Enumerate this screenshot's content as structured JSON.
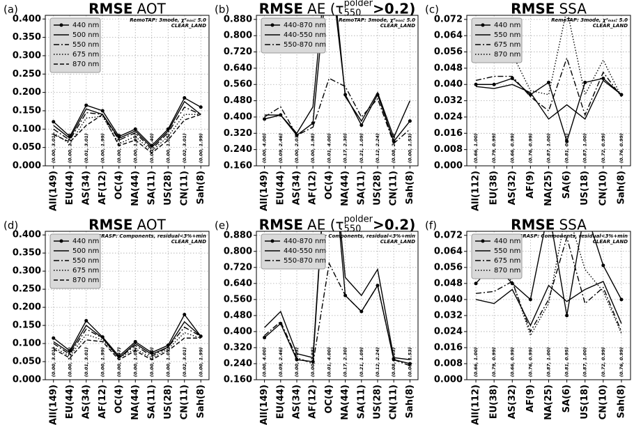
{
  "chart_data": [
    {
      "type": "line",
      "panel_label": "(a)",
      "title": "RMSE",
      "title_suffix": "AOT",
      "annotation": "RemoTAP: 3mode, χ²ₘₐₓ: 5.0",
      "annotation2": "CLEAR_LAND",
      "categories": [
        "All(149)",
        "EU(44)",
        "AS(34)",
        "AF(12)",
        "OC(4)",
        "NA(44)",
        "SA(11)",
        "US(28)",
        "CN(11)",
        "Sah(8)"
      ],
      "range_labels": [
        "(0.00, 3.01)",
        "(0.00, 1.72)",
        "(0.01, 3.01)",
        "(0.00, 1.99)",
        "(0.00, 0.47)",
        "(0.00, 1.09)",
        "(0.00, 1.40)",
        "(0.00, 1.05)",
        "(0.02, 3.01)",
        "(0.00, 1.99)"
      ],
      "series": [
        {
          "name": "440 nm",
          "color": "#000000",
          "dash": "solid",
          "marker": "o",
          "values": [
            0.12,
            0.08,
            0.165,
            0.15,
            0.08,
            0.1,
            0.055,
            0.1,
            0.185,
            0.16
          ]
        },
        {
          "name": "500 nm",
          "color": "#000000",
          "dash": "solid",
          "values": [
            0.11,
            0.075,
            0.155,
            0.14,
            0.075,
            0.095,
            0.05,
            0.095,
            0.175,
            0.14
          ]
        },
        {
          "name": "550 nm",
          "color": "#000000",
          "dash": "dashdot",
          "values": [
            0.1,
            0.07,
            0.145,
            0.14,
            0.07,
            0.09,
            0.045,
            0.09,
            0.16,
            0.14
          ]
        },
        {
          "name": "675 nm",
          "color": "#000000",
          "dash": "dotted",
          "values": [
            0.09,
            0.06,
            0.13,
            0.135,
            0.06,
            0.08,
            0.04,
            0.08,
            0.14,
            0.14
          ]
        },
        {
          "name": "870 nm",
          "color": "#000000",
          "dash": "dashed",
          "values": [
            0.085,
            0.065,
            0.11,
            0.14,
            0.055,
            0.07,
            0.035,
            0.07,
            0.125,
            0.14
          ]
        }
      ],
      "ylim": [
        0,
        0.41
      ],
      "yticks": [
        {
          "value": 0,
          "label": "0.000"
        },
        {
          "value": 0.05,
          "label": "0.050"
        },
        {
          "value": 0.1,
          "label": "0.100"
        },
        {
          "value": 0.15,
          "label": "0.150"
        },
        {
          "value": 0.2,
          "label": "0.200"
        },
        {
          "value": 0.25,
          "label": "0.250"
        },
        {
          "value": 0.3,
          "label": "0.300"
        },
        {
          "value": 0.35,
          "label": "0.350"
        },
        {
          "value": 0.4,
          "label": "0.400"
        }
      ],
      "grid": true,
      "legend": "upper left"
    },
    {
      "type": "line",
      "panel_label": "(b)",
      "title": "RMSE",
      "title_suffix": "AE (τ",
      "title_sup": "polder",
      "title_sub": "550",
      "title_end": ">0.2)",
      "annotation": "RemoTAP: 3mode, χ²ₘₐₓ: 5.0",
      "annotation2": "CLEAR_LAND",
      "categories": [
        "All(149)",
        "EU(44)",
        "AS(34)",
        "AF(12)",
        "OC(4)",
        "NA(44)",
        "SA(11)",
        "US(28)",
        "CN(11)",
        "Sah(8)"
      ],
      "range_labels": [
        "(0.00, 4.00)",
        "(0.09, 2.46)",
        "(0.00, 2.03)",
        "(0.00, 1.98)",
        "(0.01, 4.00)",
        "(0.17, 2.30)",
        "(0.21, 1.09)",
        "(0.12, 2.24)",
        "(0.08, 2.03)",
        "(0.00, 1.53)"
      ],
      "series": [
        {
          "name": "440-870 nm",
          "color": "#000000",
          "dash": "solid",
          "marker": "o",
          "values": [
            0.39,
            0.41,
            0.31,
            0.37,
            1.2,
            0.51,
            0.36,
            0.51,
            0.28,
            0.38
          ]
        },
        {
          "name": "440-550 nm",
          "color": "#000000",
          "dash": "solid",
          "values": [
            0.41,
            0.41,
            0.32,
            0.45,
            1.3,
            0.5,
            0.38,
            0.52,
            0.3,
            0.48
          ]
        },
        {
          "name": "550-870 nm",
          "color": "#000000",
          "dash": "dashdot",
          "values": [
            0.4,
            0.45,
            0.31,
            0.35,
            0.59,
            0.55,
            0.4,
            0.49,
            0.27,
            0.34
          ]
        }
      ],
      "ylim": [
        0.16,
        0.9
      ],
      "yticks": [
        {
          "value": 0.16,
          "label": "0.160"
        },
        {
          "value": 0.24,
          "label": "0.240"
        },
        {
          "value": 0.32,
          "label": "0.320"
        },
        {
          "value": 0.4,
          "label": "0.400"
        },
        {
          "value": 0.48,
          "label": "0.480"
        },
        {
          "value": 0.56,
          "label": "0.560"
        },
        {
          "value": 0.64,
          "label": "0.640"
        },
        {
          "value": 0.72,
          "label": "0.720"
        },
        {
          "value": 0.8,
          "label": "0.800"
        },
        {
          "value": 0.88,
          "label": "0.880"
        }
      ],
      "grid": true,
      "legend": "upper left"
    },
    {
      "type": "line",
      "panel_label": "(c)",
      "title": "RMSE",
      "title_suffix": "SSA",
      "annotation": "RemoTAP: 3mode, χ²ₘₐₓ: 5.0",
      "annotation2": "CLEAR_LAND",
      "categories": [
        "All(112)",
        "EU(38)",
        "AS(32)",
        "AF(9)",
        "NA(25)",
        "SA(6)",
        "US(18)",
        "CN(10)",
        "Sah(8)"
      ],
      "range_labels": [
        "(0.66, 1.00)",
        "(0.79, 0.99)",
        "(0.66, 0.99)",
        "(0.76, 0.99)",
        "(0.87, 1.00)",
        "(0.81, 0.95)",
        "(0.87, 1.00)",
        "(0.72, 0.99)",
        "(0.76, 0.99)"
      ],
      "series": [
        {
          "name": "440 nm",
          "color": "#000000",
          "dash": "solid",
          "marker": "o",
          "values": [
            0.04,
            0.04,
            0.043,
            0.035,
            0.041,
            0.012,
            0.041,
            0.043,
            0.035
          ]
        },
        {
          "name": "550 nm",
          "color": "#000000",
          "dash": "solid",
          "values": [
            0.039,
            0.038,
            0.04,
            0.036,
            0.023,
            0.03,
            0.023,
            0.042,
            0.035
          ]
        },
        {
          "name": "675 nm",
          "color": "#000000",
          "dash": "dashdot",
          "values": [
            0.042,
            0.044,
            0.044,
            0.034,
            0.027,
            0.053,
            0.025,
            0.046,
            0.034
          ]
        },
        {
          "name": "870 nm",
          "color": "#000000",
          "dash": "dotted",
          "values": [
            0.052,
            0.055,
            0.055,
            0.037,
            0.035,
            0.077,
            0.035,
            0.052,
            0.034
          ]
        }
      ],
      "ylim": [
        0,
        0.074
      ],
      "yticks": [
        {
          "value": 0,
          "label": "0.000"
        },
        {
          "value": 0.008,
          "label": "0.008"
        },
        {
          "value": 0.016,
          "label": "0.016"
        },
        {
          "value": 0.024,
          "label": "0.024"
        },
        {
          "value": 0.032,
          "label": "0.032"
        },
        {
          "value": 0.04,
          "label": "0.040"
        },
        {
          "value": 0.048,
          "label": "0.048"
        },
        {
          "value": 0.056,
          "label": "0.056"
        },
        {
          "value": 0.064,
          "label": "0.064"
        },
        {
          "value": 0.072,
          "label": "0.072"
        }
      ],
      "grid": true,
      "legend": "upper left"
    },
    {
      "type": "line",
      "panel_label": "(d)",
      "title": "RMSE",
      "title_suffix": "AOT",
      "annotation": "GRASP: Components, residual<3%+min",
      "annotation2": "CLEAR_LAND",
      "categories": [
        "All(149)",
        "EU(44)",
        "AS(34)",
        "AF(12)",
        "OC(4)",
        "NA(44)",
        "SA(11)",
        "US(28)",
        "CN(11)",
        "Sah(8)"
      ],
      "range_labels": [
        "(0.00, 3.01)",
        "(0.00, 1.72)",
        "(0.01, 3.01)",
        "(0.00, 1.99)",
        "(0.00, 0.47)",
        "(0.00, 1.09)",
        "(0.00, 1.40)",
        "(0.00, 1.05)",
        "(0.02, 3.01)",
        "(0.00, 1.99)"
      ],
      "series": [
        {
          "name": "440 nm",
          "color": "#000000",
          "dash": "solid",
          "marker": "o",
          "values": [
            0.115,
            0.08,
            0.163,
            0.118,
            0.065,
            0.105,
            0.075,
            0.095,
            0.18,
            0.12
          ]
        },
        {
          "name": "500 nm",
          "color": "#000000",
          "dash": "solid",
          "values": [
            0.105,
            0.075,
            0.15,
            0.115,
            0.06,
            0.1,
            0.07,
            0.09,
            0.16,
            0.12
          ]
        },
        {
          "name": "550 nm",
          "color": "#000000",
          "dash": "dashdot",
          "values": [
            0.1,
            0.07,
            0.14,
            0.115,
            0.06,
            0.095,
            0.065,
            0.09,
            0.145,
            0.12
          ]
        },
        {
          "name": "675 nm",
          "color": "#000000",
          "dash": "dotted",
          "values": [
            0.09,
            0.065,
            0.125,
            0.11,
            0.06,
            0.085,
            0.06,
            0.085,
            0.13,
            0.115
          ]
        },
        {
          "name": "870 nm",
          "color": "#000000",
          "dash": "dashed",
          "values": [
            0.085,
            0.06,
            0.11,
            0.105,
            0.055,
            0.08,
            0.055,
            0.08,
            0.115,
            0.115
          ]
        }
      ],
      "ylim": [
        0,
        0.41
      ],
      "yticks": [
        {
          "value": 0,
          "label": "0.000"
        },
        {
          "value": 0.05,
          "label": "0.050"
        },
        {
          "value": 0.1,
          "label": "0.100"
        },
        {
          "value": 0.15,
          "label": "0.150"
        },
        {
          "value": 0.2,
          "label": "0.200"
        },
        {
          "value": 0.25,
          "label": "0.250"
        },
        {
          "value": 0.3,
          "label": "0.300"
        },
        {
          "value": 0.35,
          "label": "0.350"
        },
        {
          "value": 0.4,
          "label": "0.400"
        }
      ],
      "grid": true,
      "legend": "upper left"
    },
    {
      "type": "line",
      "panel_label": "(e)",
      "title": "RMSE",
      "title_suffix": "AE (τ",
      "title_sup": "polder",
      "title_sub": "550",
      "title_end": ">0.2)",
      "annotation": "GRASP: Components, residual<3%+min",
      "annotation2": "CLEAR_LAND",
      "categories": [
        "All(149)",
        "EU(44)",
        "AS(34)",
        "AF(12)",
        "OC(4)",
        "NA(44)",
        "SA(11)",
        "US(28)",
        "CN(11)",
        "Sah(8)"
      ],
      "range_labels": [
        "(0.00, 4.00)",
        "(0.09, 2.46)",
        "(0.00, 2.03)",
        "(0.00, 1.98)",
        "(0.01, 4.00)",
        "(0.17, 2.30)",
        "(0.21, 1.09)",
        "(0.12, 2.24)",
        "(0.08, 2.03)",
        "(0.00, 1.53)"
      ],
      "series": [
        {
          "name": "440-870 nm",
          "color": "#000000",
          "dash": "solid",
          "marker": "o",
          "values": [
            0.37,
            0.44,
            0.26,
            0.25,
            1.5,
            0.58,
            0.5,
            0.63,
            0.26,
            0.24
          ]
        },
        {
          "name": "440-550 nm",
          "color": "#000000",
          "dash": "solid",
          "values": [
            0.42,
            0.5,
            0.29,
            0.27,
            1.5,
            0.67,
            0.58,
            0.71,
            0.27,
            0.26
          ]
        },
        {
          "name": "550-870 nm",
          "color": "#000000",
          "dash": "dashdot",
          "values": [
            0.38,
            0.45,
            0.27,
            0.24,
            0.74,
            0.58,
            0.5,
            0.63,
            0.26,
            0.23
          ]
        }
      ],
      "ylim": [
        0.16,
        0.9
      ],
      "yticks": [
        {
          "value": 0.16,
          "label": "0.160"
        },
        {
          "value": 0.24,
          "label": "0.240"
        },
        {
          "value": 0.32,
          "label": "0.320"
        },
        {
          "value": 0.4,
          "label": "0.400"
        },
        {
          "value": 0.48,
          "label": "0.480"
        },
        {
          "value": 0.56,
          "label": "0.560"
        },
        {
          "value": 0.64,
          "label": "0.640"
        },
        {
          "value": 0.72,
          "label": "0.720"
        },
        {
          "value": 0.8,
          "label": "0.800"
        },
        {
          "value": 0.88,
          "label": "0.880"
        }
      ],
      "grid": true,
      "legend": "upper left"
    },
    {
      "type": "line",
      "panel_label": "(f)",
      "title": "RMSE",
      "title_suffix": "SSA",
      "annotation": "GRASP: Components, residual<3%+min",
      "annotation2": "CLEAR_LAND",
      "categories": [
        "All(112)",
        "EU(38)",
        "AS(32)",
        "AF(9)",
        "NA(25)",
        "SA(6)",
        "US(18)",
        "CN(10)",
        "Sah(8)"
      ],
      "range_labels": [
        "(0.66, 1.00)",
        "(0.79, 0.99)",
        "(0.66, 0.99)",
        "(0.76, 0.99)",
        "(0.87, 1.00)",
        "(0.81, 0.95)",
        "(0.87, 1.00)",
        "(0.72, 0.99)",
        "(0.76, 0.99)"
      ],
      "series": [
        {
          "name": "440 nm",
          "color": "#000000",
          "dash": "solid",
          "marker": "o",
          "values": [
            0.048,
            0.058,
            0.048,
            0.04,
            0.085,
            0.032,
            0.085,
            0.057,
            0.04
          ]
        },
        {
          "name": "550 nm",
          "color": "#000000",
          "dash": "solid",
          "values": [
            0.04,
            0.038,
            0.045,
            0.027,
            0.047,
            0.039,
            0.045,
            0.049,
            0.028
          ]
        },
        {
          "name": "675 nm",
          "color": "#000000",
          "dash": "dashdot",
          "values": [
            0.043,
            0.044,
            0.049,
            0.024,
            0.04,
            0.071,
            0.038,
            0.046,
            0.024
          ]
        },
        {
          "name": "870 nm",
          "color": "#000000",
          "dash": "dotted",
          "values": [
            0.055,
            0.058,
            0.049,
            0.022,
            0.038,
            0.085,
            0.055,
            0.044,
            0.023
          ]
        }
      ],
      "ylim": [
        0,
        0.074
      ],
      "yticks": [
        {
          "value": 0,
          "label": "0.000"
        },
        {
          "value": 0.008,
          "label": "0.008"
        },
        {
          "value": 0.016,
          "label": "0.016"
        },
        {
          "value": 0.024,
          "label": "0.024"
        },
        {
          "value": 0.032,
          "label": "0.032"
        },
        {
          "value": 0.04,
          "label": "0.040"
        },
        {
          "value": 0.048,
          "label": "0.048"
        },
        {
          "value": 0.056,
          "label": "0.056"
        },
        {
          "value": 0.064,
          "label": "0.064"
        },
        {
          "value": 0.072,
          "label": "0.072"
        }
      ],
      "grid": true,
      "legend": "upper left"
    }
  ]
}
